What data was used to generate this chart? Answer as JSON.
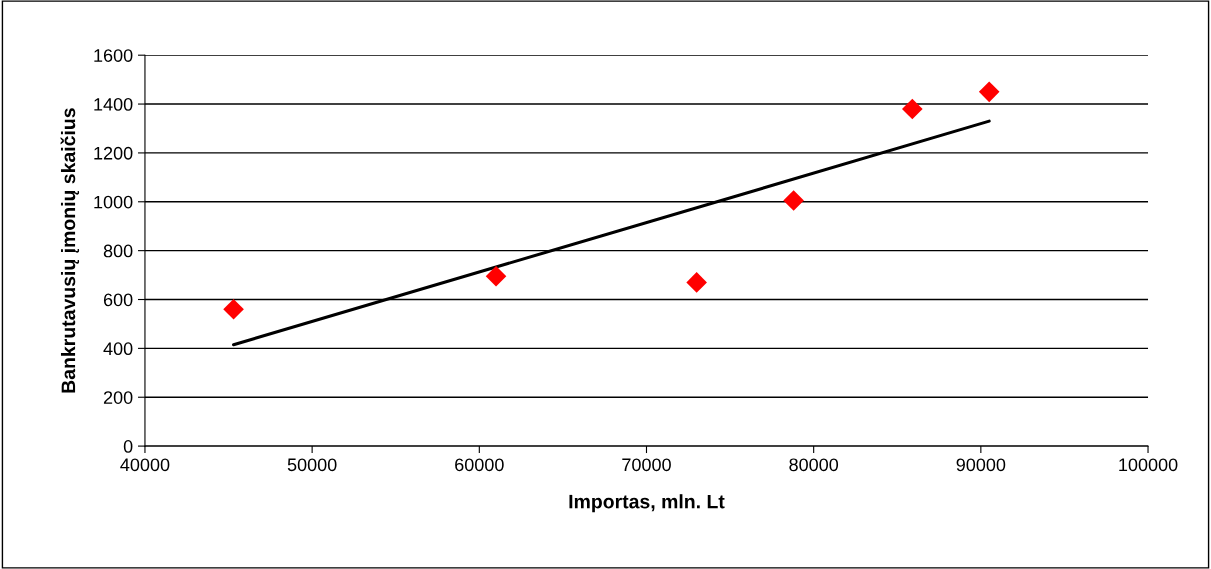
{
  "chart_data": {
    "type": "scatter",
    "xlabel": "Importas, mln. Lt",
    "ylabel": "Bankrutavusių įmonių skaičius",
    "series": [
      {
        "type": "scatter",
        "color": "#ff0000",
        "marker": "diamond",
        "x": [
          45300,
          61000,
          73000,
          78800,
          85900,
          90500
        ],
        "values": [
          560,
          695,
          670,
          1005,
          1380,
          1450
        ]
      },
      {
        "type": "line",
        "color": "#000000",
        "marker": "none",
        "x": [
          45300,
          90500
        ],
        "values": [
          415,
          1330
        ]
      }
    ],
    "xlim": [
      40000,
      100000
    ],
    "xticks": [
      40000,
      50000,
      60000,
      70000,
      80000,
      90000,
      100000
    ],
    "ylim": [
      0,
      1600
    ],
    "yticks": [
      0,
      200,
      400,
      600,
      800,
      1000,
      1200,
      1400,
      1600
    ],
    "grid": "y",
    "legend": false
  }
}
